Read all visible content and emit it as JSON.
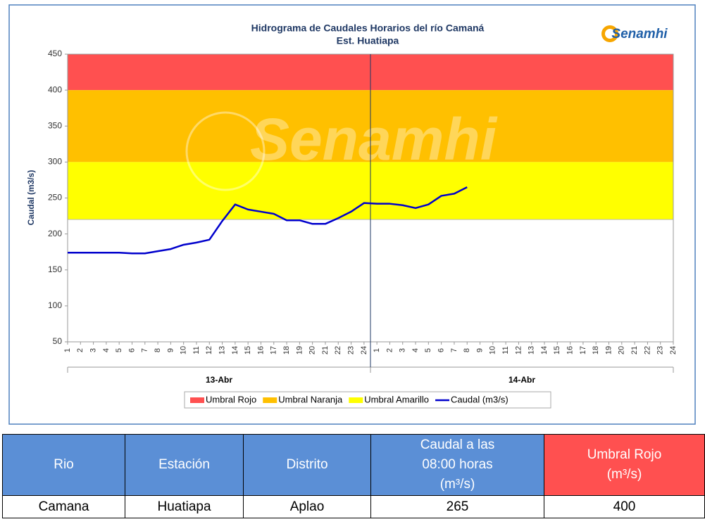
{
  "chart_data": {
    "type": "line",
    "title": "Hidrograma de Caudales Horarios del río Camaná",
    "subtitle": "Est. Huatiapa",
    "logo": "Senamhi",
    "watermark": "Senamhi",
    "y_label": "Caudal  (m3/s)",
    "categories": [
      "1",
      "2",
      "3",
      "4",
      "5",
      "6",
      "7",
      "8",
      "9",
      "10",
      "11",
      "12",
      "13",
      "14",
      "15",
      "16",
      "17",
      "18",
      "19",
      "20",
      "21",
      "22",
      "23",
      "24",
      "1",
      "2",
      "3",
      "4",
      "5",
      "6",
      "7",
      "8",
      "9",
      "10",
      "11",
      "12",
      "13",
      "14",
      "15",
      "16",
      "17",
      "18",
      "19",
      "20",
      "21",
      "22",
      "23",
      "24"
    ],
    "groups": [
      {
        "label": "13-Abr",
        "size": 24
      },
      {
        "label": "14-Abr",
        "size": 24
      }
    ],
    "ylim": [
      50,
      450
    ],
    "yticks": [
      50,
      100,
      150,
      200,
      250,
      300,
      350,
      400,
      450
    ],
    "bands": [
      {
        "name": "Umbral Rojo",
        "color": "#ff5050",
        "from": 400,
        "to": 450
      },
      {
        "name": "Umbral Naranja",
        "color": "#ffc000",
        "from": 300,
        "to": 400
      },
      {
        "name": "Umbral Amarillo",
        "color": "#ffff00",
        "from": 220,
        "to": 300
      }
    ],
    "series": [
      {
        "name": "Caudal (m3/s)",
        "color": "#0000cc",
        "values": [
          174,
          174,
          174,
          174,
          174,
          173,
          173,
          176,
          179,
          185,
          188,
          192,
          218,
          241,
          234,
          231,
          228,
          219,
          219,
          214,
          214,
          222,
          231,
          243,
          242,
          242,
          240,
          236,
          241,
          253,
          256,
          265,
          null,
          null,
          null,
          null,
          null,
          null,
          null,
          null,
          null,
          null,
          null,
          null,
          null,
          null,
          null,
          null
        ]
      }
    ]
  },
  "table": {
    "header": [
      "Rio",
      "Estación",
      "Distrito",
      "Caudal a las\n08:00 horas\n(m³/s)",
      "Umbral Rojo\n(m³/s)"
    ],
    "rows": [
      [
        "Camana",
        "Huatiapa",
        "Aplao",
        "265",
        "400"
      ]
    ]
  }
}
